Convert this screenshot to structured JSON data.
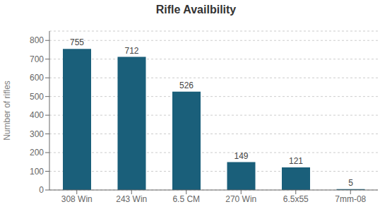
{
  "chart_data": {
    "type": "bar",
    "title": "Rifle Availbility",
    "categories": [
      "308 Win",
      "243 Win",
      "6.5 CM",
      "270 Win",
      "6.5x55",
      "7mm-08"
    ],
    "values": [
      755,
      712,
      526,
      149,
      121,
      5
    ],
    "color": "#1a5f7a",
    "ylabel": "Number of rifles",
    "ylim": [
      0,
      850
    ],
    "yticks": [
      0,
      100,
      200,
      300,
      400,
      500,
      600,
      700,
      800
    ],
    "grid": true,
    "data_labels": true
  }
}
